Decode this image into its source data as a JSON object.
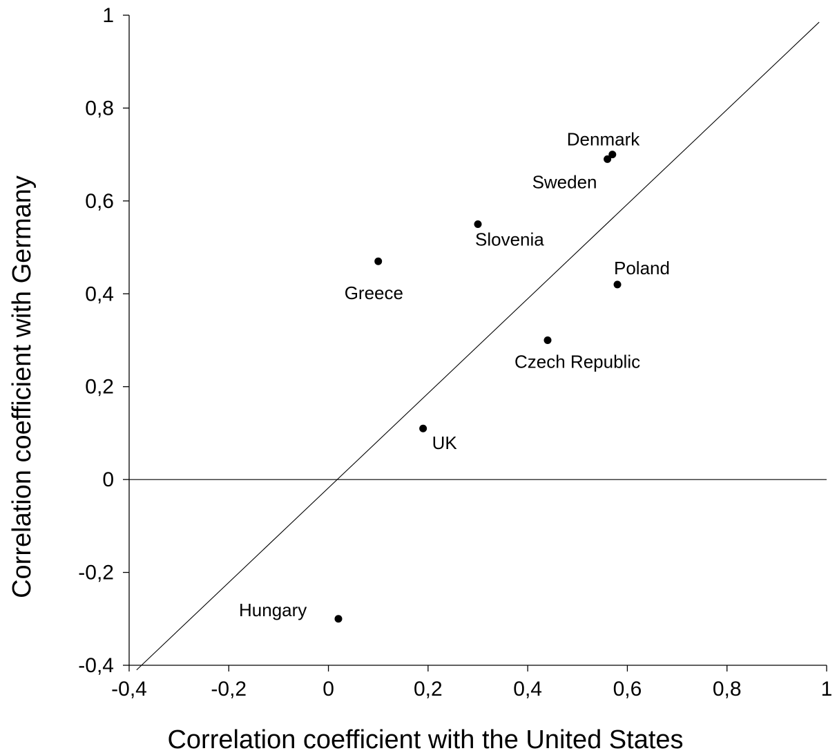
{
  "chart_data": {
    "type": "scatter",
    "title": "",
    "xlabel": "Correlation coefficient with the United States",
    "ylabel": "Correlation coefficient with Germany",
    "xlim": [
      -0.4,
      1.0
    ],
    "ylim": [
      -0.4,
      1.0
    ],
    "xticks": [
      "-0,4",
      "-0,2",
      "0",
      "0,2",
      "0,4",
      "0,6",
      "0,8",
      "1"
    ],
    "yticks": [
      "-0,4",
      "-0,2",
      "0",
      "0,2",
      "0,4",
      "0,6",
      "0,8",
      "1"
    ],
    "grid": false,
    "reference_lines": [
      "y = x",
      "y = 0"
    ],
    "points": [
      {
        "label": "Denmark",
        "x": 0.57,
        "y": 0.7
      },
      {
        "label": "Sweden",
        "x": 0.56,
        "y": 0.69
      },
      {
        "label": "Slovenia",
        "x": 0.3,
        "y": 0.55
      },
      {
        "label": "Greece",
        "x": 0.1,
        "y": 0.47
      },
      {
        "label": "Poland",
        "x": 0.58,
        "y": 0.42
      },
      {
        "label": "Czech Republic",
        "x": 0.44,
        "y": 0.3
      },
      {
        "label": "UK",
        "x": 0.19,
        "y": 0.11
      },
      {
        "label": "Hungary",
        "x": 0.02,
        "y": -0.3
      }
    ]
  }
}
